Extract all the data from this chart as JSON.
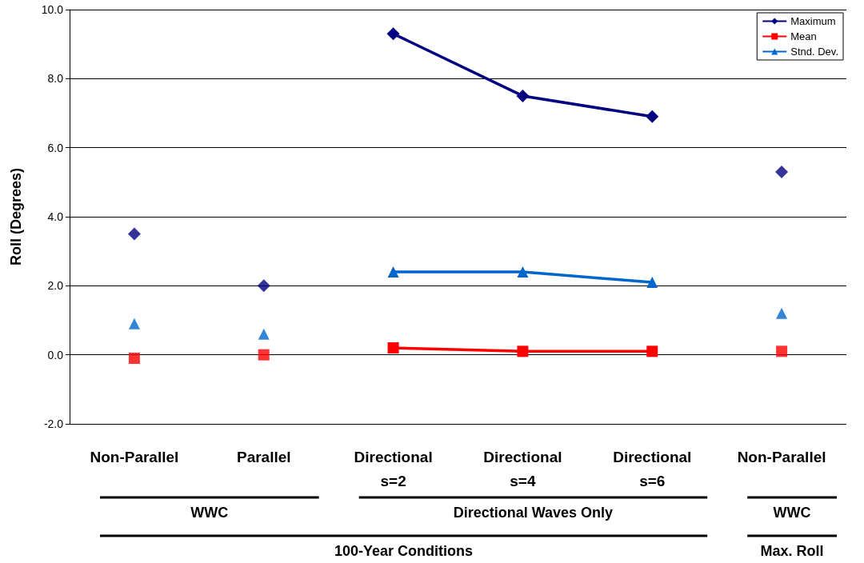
{
  "chart_data": {
    "type": "line",
    "ylabel": "Roll (Degrees)",
    "categories": [
      "Non-Parallel",
      "Parallel",
      "Directional\ns=2",
      "Directional\ns=4",
      "Directional\ns=6",
      "Non-Parallel"
    ],
    "series": [
      {
        "name": "Maximum",
        "color": "#000080",
        "marker": "diamond",
        "values": [
          null,
          null,
          9.3,
          7.5,
          6.9,
          null
        ]
      },
      {
        "name": "Mean",
        "color": "#ff0000",
        "marker": "square",
        "values": [
          null,
          null,
          0.2,
          0.1,
          0.1,
          null
        ]
      },
      {
        "name": "Stnd. Dev.",
        "color": "#0066cc",
        "marker": "triangle",
        "values": [
          null,
          null,
          2.4,
          2.4,
          2.1,
          null
        ]
      },
      {
        "type": "scatter",
        "color": "#000080",
        "marker": "diamond",
        "values": [
          3.5,
          2.0,
          null,
          null,
          null,
          5.3
        ]
      },
      {
        "type": "scatter",
        "color": "#ff0000",
        "marker": "square",
        "values": [
          -0.1,
          0.0,
          null,
          null,
          null,
          0.1
        ]
      },
      {
        "type": "scatter",
        "color": "#0066cc",
        "marker": "triangle",
        "values": [
          0.9,
          0.6,
          null,
          null,
          null,
          1.2
        ]
      }
    ],
    "ylim": [
      -2,
      10
    ],
    "yticks": [
      {
        "value": -2,
        "label": "-2.0"
      },
      {
        "value": 0,
        "label": "0.0"
      },
      {
        "value": 2,
        "label": "2.0"
      },
      {
        "value": 4,
        "label": "4.0"
      },
      {
        "value": 6,
        "label": "6.0"
      },
      {
        "value": 8,
        "label": "8.0"
      },
      {
        "value": 10,
        "label": "10.0"
      }
    ],
    "grid": "y",
    "legend": "top right",
    "annotations": [
      "WWC",
      "Directional Waves Only",
      "WWC",
      "100-Year Conditions",
      "Max. Roll"
    ]
  }
}
